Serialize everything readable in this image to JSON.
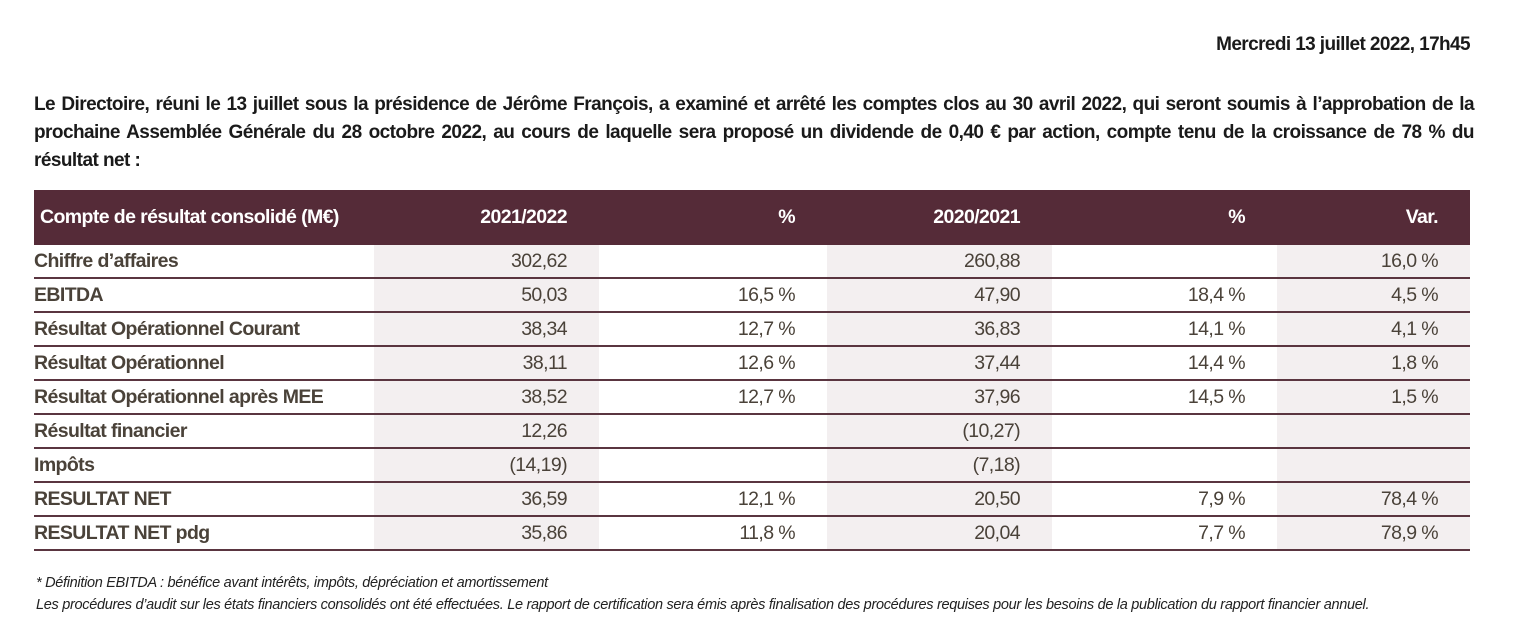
{
  "date": "Mercredi 13 juillet 2022, 17h45",
  "intro": "Le Directoire, réuni le 13 juillet sous la présidence de Jérôme François, a examiné et arrêté les comptes clos au 30 avril 2022, qui seront soumis à l’approbation de la prochaine Assemblée Générale du 28 octobre 2022, au cours de laquelle sera proposé un dividende de 0,40 € par action, compte tenu de la croissance de 78 % du résultat net :",
  "table": {
    "headers": [
      "Compte de résultat consolidé (M€)",
      "2021/2022",
      "%",
      "2020/2021",
      "%",
      "Var."
    ],
    "rows": [
      [
        "Chiffre d’affaires",
        "302,62",
        "",
        "260,88",
        "",
        "16,0 %"
      ],
      [
        "EBITDA",
        "50,03",
        "16,5 %",
        "47,90",
        "18,4 %",
        "4,5 %"
      ],
      [
        "Résultat Opérationnel Courant",
        "38,34",
        "12,7 %",
        "36,83",
        "14,1 %",
        "4,1 %"
      ],
      [
        "Résultat Opérationnel",
        "38,11",
        "12,6 %",
        "37,44",
        "14,4 %",
        "1,8 %"
      ],
      [
        "Résultat Opérationnel après MEE",
        "38,52",
        "12,7 %",
        "37,96",
        "14,5 %",
        "1,5 %"
      ],
      [
        "Résultat financier",
        "12,26",
        "",
        "(10,27)",
        "",
        ""
      ],
      [
        "Impôts",
        "(14,19)",
        "",
        "(7,18)",
        "",
        ""
      ],
      [
        "RESULTAT NET",
        "36,59",
        "12,1 %",
        "20,50",
        "7,9 %",
        "78,4 %"
      ],
      [
        "RESULTAT NET pdg",
        "35,86",
        "11,8 %",
        "20,04",
        "7,7 %",
        "78,9 %"
      ]
    ]
  },
  "footnotes": [
    "* Définition EBITDA : bénéfice avant intérêts, impôts, dépréciation et amortissement",
    "Les procédures d’audit sur les états financiers consolidés ont été effectuées. Le rapport de certification sera émis après finalisation des procédures requises pour les besoins de la publication du rapport financier annuel."
  ]
}
